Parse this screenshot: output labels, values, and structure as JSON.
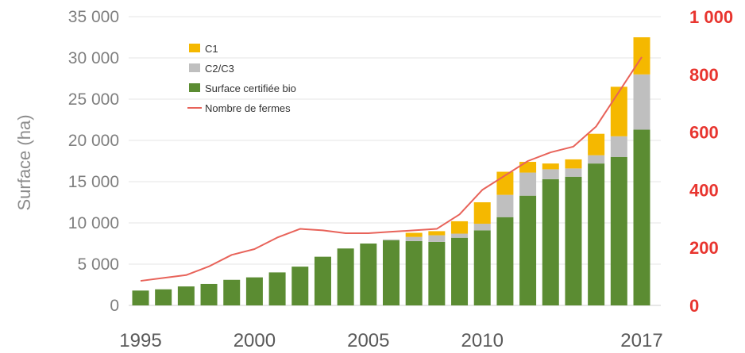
{
  "chart_data": {
    "type": "bar",
    "stacked": true,
    "title": "",
    "xlabel": "",
    "ylabel": "Surface (ha)",
    "x": [
      1995,
      1996,
      1997,
      1998,
      1999,
      2000,
      2001,
      2002,
      2003,
      2004,
      2005,
      2006,
      2007,
      2008,
      2009,
      2010,
      2011,
      2012,
      2013,
      2014,
      2015,
      2016,
      2017
    ],
    "x_tick_labels": [
      "1995",
      "2000",
      "2005",
      "2010",
      "2017"
    ],
    "x_tick_values": [
      1995,
      2000,
      2005,
      2010,
      2017
    ],
    "ylim": [
      0,
      35000
    ],
    "y_ticks": [
      0,
      5000,
      10000,
      15000,
      20000,
      25000,
      30000,
      35000
    ],
    "y_tick_labels": [
      "0",
      "5 000",
      "10 000",
      "15 000",
      "20 000",
      "25 000",
      "30 000",
      "35 000"
    ],
    "y2lim": [
      0,
      1000
    ],
    "y2_ticks": [
      0,
      200,
      400,
      600,
      800,
      1000
    ],
    "y2_tick_labels": [
      "0",
      "200",
      "400",
      "600",
      "800",
      "1 000"
    ],
    "grid": true,
    "legend_position": "top-left",
    "series": [
      {
        "name": "Surface certifiée bio",
        "type": "bar",
        "axis": "left",
        "color": "#5b8c32",
        "values": [
          1800,
          1950,
          2300,
          2600,
          3100,
          3400,
          4000,
          4700,
          5900,
          6900,
          7500,
          7900,
          7800,
          7700,
          8200,
          9100,
          10700,
          13300,
          15300,
          15600,
          17200,
          18000,
          21300
        ]
      },
      {
        "name": "C2/C3",
        "type": "bar",
        "axis": "left",
        "color": "#bfbfbf",
        "values": [
          0,
          0,
          0,
          0,
          0,
          0,
          0,
          0,
          0,
          0,
          0,
          100,
          500,
          800,
          500,
          800,
          2700,
          2800,
          1200,
          1000,
          1000,
          2500,
          6700
        ]
      },
      {
        "name": "C1",
        "type": "bar",
        "axis": "left",
        "color": "#f5b800",
        "values": [
          0,
          0,
          0,
          0,
          0,
          0,
          0,
          0,
          0,
          0,
          0,
          0,
          500,
          500,
          1500,
          2600,
          2800,
          1300,
          700,
          1100,
          2600,
          6000,
          4500
        ]
      },
      {
        "name": "Nombre de fermes",
        "type": "line",
        "axis": "right",
        "color": "#e8635a",
        "values": [
          85,
          95,
          105,
          135,
          175,
          195,
          235,
          265,
          260,
          250,
          250,
          255,
          260,
          265,
          315,
          400,
          450,
          500,
          530,
          550,
          620,
          740,
          860
        ]
      }
    ]
  }
}
